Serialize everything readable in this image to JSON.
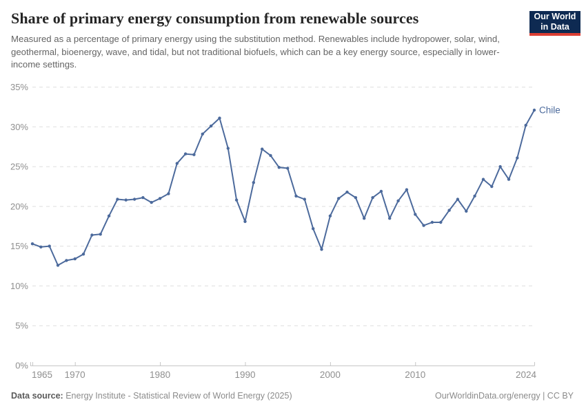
{
  "header": {
    "title": "Share of primary energy consumption from renewable sources",
    "subtitle": "Measured as a percentage of primary energy using the substitution method. Renewables include hydropower, solar, wind, geothermal, bioenergy, wave, and tidal, but not traditional biofuels, which can be a key energy source, especially in lower-income settings.",
    "logo": {
      "line1": "Our World",
      "line2": "in Data",
      "bg_color": "#0e2a52",
      "bar_color": "#dc3e33"
    }
  },
  "chart_data": {
    "type": "line",
    "title": "Share of primary energy consumption from renewable sources",
    "entity_label": "Chile",
    "line_color": "#4C6A9C",
    "grid": true,
    "xlim": [
      1965,
      2024
    ],
    "ylim": [
      0,
      35
    ],
    "yticks": [
      0,
      5,
      10,
      15,
      20,
      25,
      30,
      35
    ],
    "ytick_suffix": "%",
    "xticks": [
      1965,
      1970,
      1980,
      1990,
      2000,
      2010,
      2024
    ],
    "x": [
      1965,
      1966,
      1967,
      1968,
      1969,
      1970,
      1971,
      1972,
      1973,
      1974,
      1975,
      1976,
      1977,
      1978,
      1979,
      1980,
      1981,
      1982,
      1983,
      1984,
      1985,
      1986,
      1987,
      1988,
      1989,
      1990,
      1991,
      1992,
      1993,
      1994,
      1995,
      1996,
      1997,
      1998,
      1999,
      2000,
      2001,
      2002,
      2003,
      2004,
      2005,
      2006,
      2007,
      2008,
      2009,
      2010,
      2011,
      2012,
      2013,
      2014,
      2015,
      2016,
      2017,
      2018,
      2019,
      2020,
      2021,
      2022,
      2023,
      2024
    ],
    "values": [
      15.3,
      14.9,
      15.0,
      12.6,
      13.2,
      13.4,
      14.0,
      16.4,
      16.5,
      18.8,
      20.9,
      20.8,
      20.9,
      21.1,
      20.5,
      21.0,
      21.6,
      25.4,
      26.6,
      26.5,
      29.1,
      30.1,
      31.1,
      27.3,
      20.8,
      18.1,
      23.0,
      27.2,
      26.4,
      24.9,
      24.8,
      21.3,
      20.9,
      17.2,
      14.6,
      18.8,
      21.0,
      21.8,
      21.1,
      18.5,
      21.1,
      21.9,
      18.5,
      20.7,
      22.1,
      19.0,
      17.6,
      18.0,
      18.0,
      19.5,
      20.9,
      19.4,
      21.3,
      23.4,
      22.5,
      25.0,
      23.4,
      26.1,
      30.2,
      32.1
    ]
  },
  "footer": {
    "source_label": "Data source:",
    "source_value": "Energy Institute - Statistical Review of World Energy (2025)",
    "credit": "OurWorldinData.org/energy | CC BY"
  }
}
